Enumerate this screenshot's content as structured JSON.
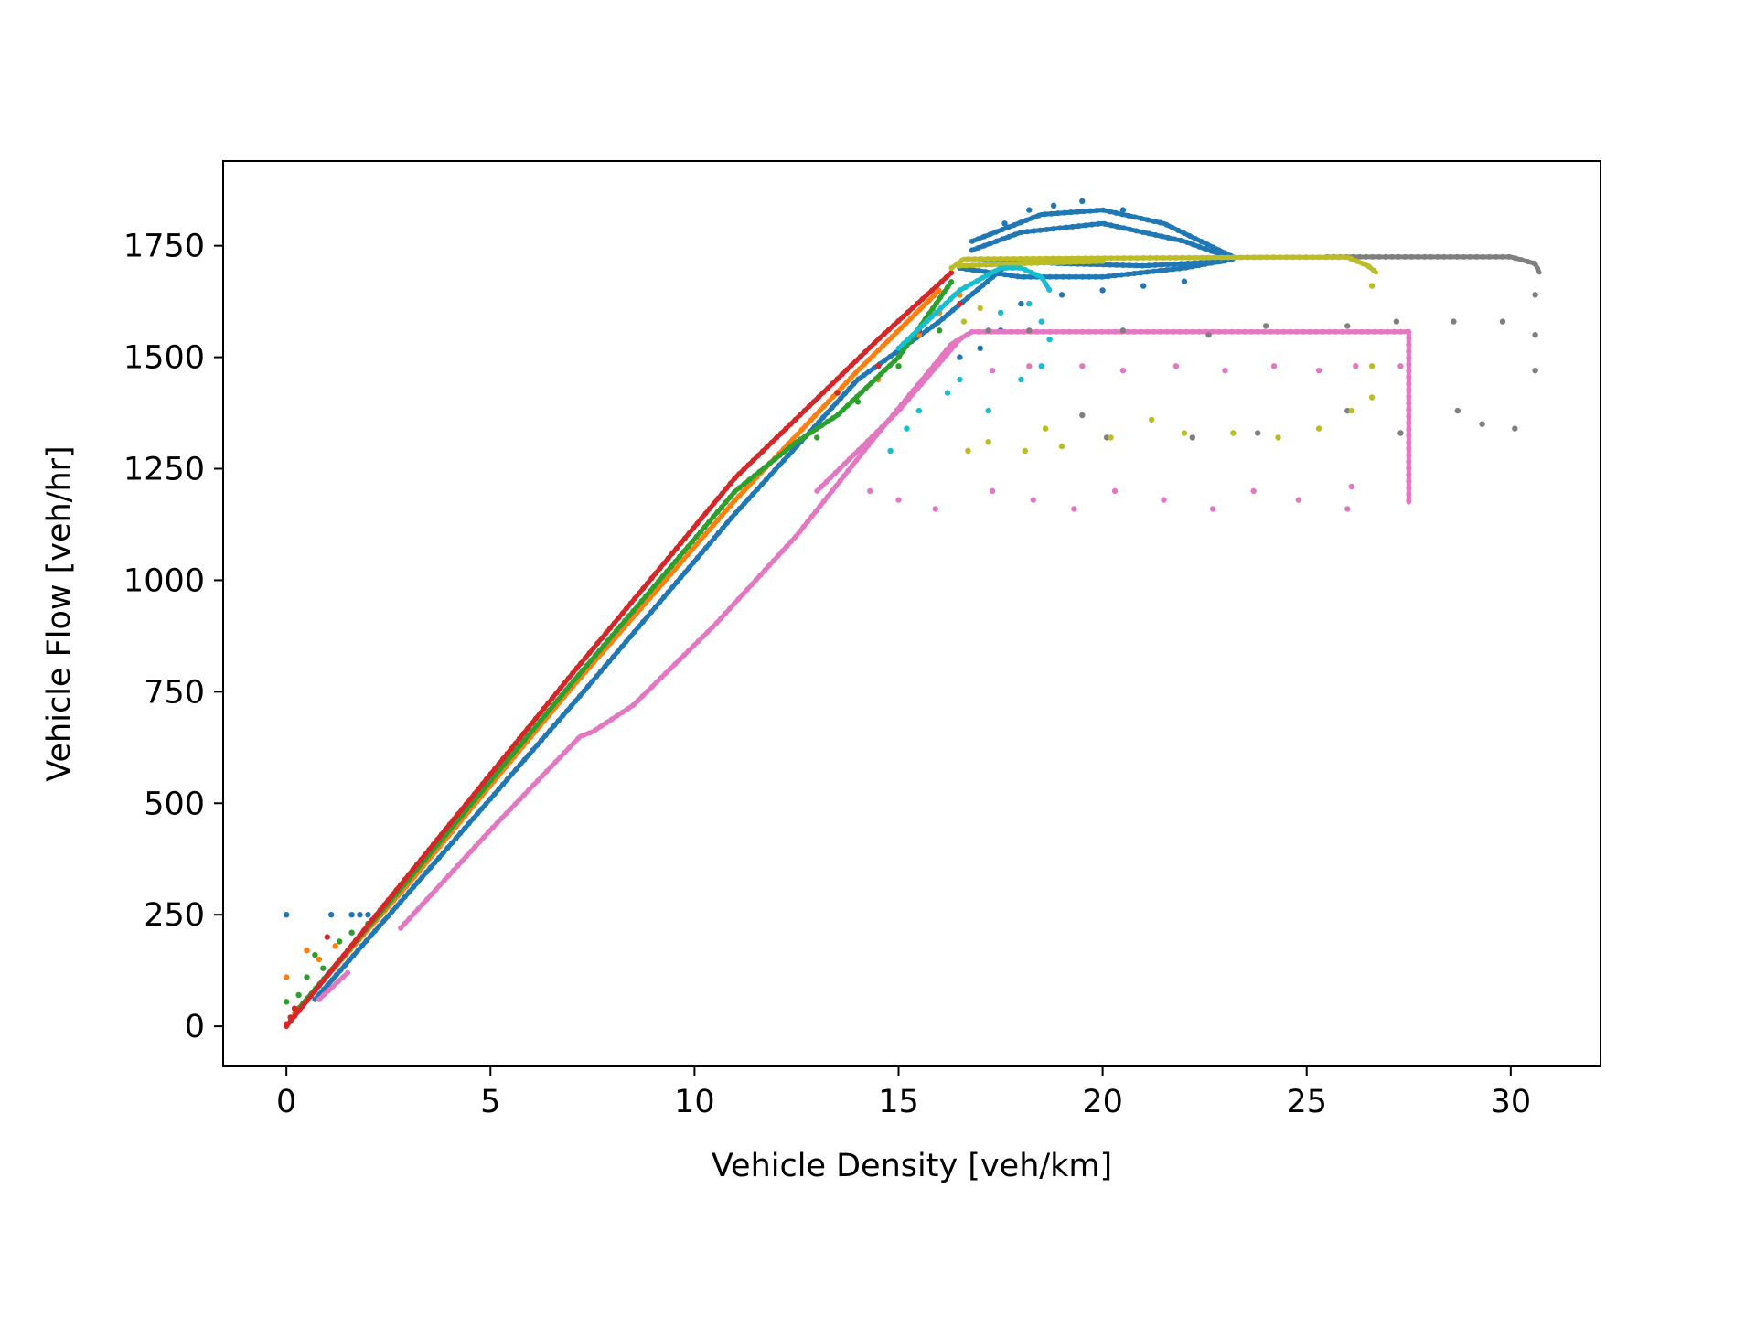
{
  "chart_data": {
    "type": "scatter",
    "title": "",
    "xlabel": "Vehicle Density [veh/km]",
    "ylabel": "Vehicle Flow [veh/hr]",
    "xlim": [
      -1.55,
      32.2
    ],
    "ylim": [
      -90,
      1940
    ],
    "xticks": [
      0,
      5,
      10,
      15,
      20,
      25,
      30
    ],
    "yticks": [
      0,
      250,
      500,
      750,
      1000,
      1250,
      1500,
      1750
    ],
    "grid": false,
    "legend": "none",
    "series": [
      {
        "color": "#1f77b4",
        "segments": [
          [
            [
              0.7,
              60
            ],
            [
              3,
              300
            ],
            [
              7,
              720
            ],
            [
              11,
              1150
            ],
            [
              14,
              1450
            ],
            [
              16,
              1580
            ],
            [
              17.7,
              1710
            ]
          ],
          [
            [
              16.8,
              1740
            ],
            [
              18,
              1780
            ],
            [
              20,
              1800
            ],
            [
              22,
              1760
            ],
            [
              23.2,
              1720
            ]
          ],
          [
            [
              16.5,
              1700
            ],
            [
              18,
              1680
            ],
            [
              20,
              1680
            ],
            [
              22,
              1700
            ],
            [
              23.2,
              1720
            ]
          ],
          [
            [
              16.8,
              1760
            ],
            [
              18.5,
              1820
            ],
            [
              20,
              1830
            ],
            [
              21.5,
              1800
            ],
            [
              23.2,
              1725
            ]
          ],
          [
            [
              17,
              1720
            ],
            [
              19,
              1710
            ],
            [
              21,
              1705
            ],
            [
              23,
              1715
            ]
          ]
        ],
        "points": [
          [
            0,
            250
          ],
          [
            1.1,
            250
          ],
          [
            1.6,
            250
          ],
          [
            1.8,
            250
          ],
          [
            2,
            250
          ],
          [
            16.5,
            1500
          ],
          [
            17,
            1520
          ],
          [
            17.5,
            1560
          ],
          [
            18,
            1620
          ],
          [
            19,
            1640
          ],
          [
            20,
            1650
          ],
          [
            21,
            1660
          ],
          [
            22,
            1670
          ],
          [
            19.5,
            1850
          ],
          [
            18.8,
            1840
          ],
          [
            18.2,
            1830
          ],
          [
            20.5,
            1830
          ],
          [
            17.6,
            1800
          ]
        ]
      },
      {
        "color": "#ff7f0e",
        "segments": [
          [
            [
              0.2,
              30
            ],
            [
              3,
              320
            ],
            [
              7,
              760
            ],
            [
              11,
              1180
            ],
            [
              14,
              1470
            ],
            [
              16,
              1650
            ]
          ]
        ],
        "points": [
          [
            0,
            110
          ],
          [
            0.5,
            170
          ],
          [
            0.8,
            150
          ],
          [
            1.2,
            180
          ],
          [
            14.5,
            1450
          ],
          [
            15,
            1500
          ],
          [
            15.5,
            1550
          ],
          [
            16,
            1600
          ],
          [
            16.5,
            1640
          ]
        ]
      },
      {
        "color": "#2ca02c",
        "segments": [
          [
            [
              0.3,
              40
            ],
            [
              3,
              330
            ],
            [
              7,
              770
            ],
            [
              11,
              1200
            ],
            [
              12.5,
              1310
            ],
            [
              13.5,
              1370
            ],
            [
              15,
              1500
            ],
            [
              16.3,
              1670
            ]
          ]
        ],
        "points": [
          [
            0,
            55
          ],
          [
            0.3,
            70
          ],
          [
            0.5,
            110
          ],
          [
            0.7,
            160
          ],
          [
            0.9,
            130
          ],
          [
            1.3,
            190
          ],
          [
            1.6,
            210
          ],
          [
            2,
            230
          ],
          [
            13,
            1320
          ],
          [
            14,
            1400
          ],
          [
            15,
            1480
          ],
          [
            16,
            1560
          ]
        ]
      },
      {
        "color": "#d62728",
        "segments": [
          [
            [
              0,
              0
            ],
            [
              3,
              340
            ],
            [
              7,
              790
            ],
            [
              11,
              1230
            ],
            [
              14.5,
              1540
            ],
            [
              16.3,
              1690
            ]
          ]
        ],
        "points": [
          [
            0,
            5
          ],
          [
            0.1,
            20
          ],
          [
            0.2,
            40
          ],
          [
            1,
            200
          ],
          [
            13.5,
            1420
          ],
          [
            14.5,
            1480
          ],
          [
            15.5,
            1560
          ],
          [
            16.5,
            1620
          ]
        ]
      },
      {
        "color": "#e377c2",
        "segments": [
          [
            [
              0.8,
              60
            ],
            [
              1.5,
              120
            ]
          ],
          [
            [
              2.8,
              220
            ],
            [
              5,
              440
            ],
            [
              7.2,
              650
            ],
            [
              7.5,
              660
            ],
            [
              8.5,
              720
            ],
            [
              10.5,
              900
            ],
            [
              12.5,
              1100
            ],
            [
              14.5,
              1330
            ],
            [
              16.3,
              1530
            ],
            [
              16.8,
              1557
            ]
          ],
          [
            [
              16.8,
              1557
            ],
            [
              27.5,
              1557
            ]
          ],
          [
            [
              27.5,
              1557
            ],
            [
              27.5,
              1175
            ]
          ],
          [
            [
              13,
              1200
            ],
            [
              15,
              1380
            ],
            [
              16.5,
              1540
            ]
          ]
        ],
        "points": [
          [
            14.3,
            1200
          ],
          [
            15,
            1180
          ],
          [
            15.9,
            1160
          ],
          [
            17.3,
            1200
          ],
          [
            18.3,
            1180
          ],
          [
            19.3,
            1160
          ],
          [
            20.3,
            1200
          ],
          [
            21.5,
            1180
          ],
          [
            22.7,
            1160
          ],
          [
            23.7,
            1200
          ],
          [
            24.8,
            1180
          ],
          [
            26,
            1160
          ],
          [
            26.1,
            1210
          ],
          [
            17.3,
            1470
          ],
          [
            18.2,
            1480
          ],
          [
            19.5,
            1480
          ],
          [
            20.5,
            1470
          ],
          [
            21.8,
            1480
          ],
          [
            23,
            1470
          ],
          [
            24.2,
            1480
          ],
          [
            25.3,
            1470
          ],
          [
            26.2,
            1480
          ],
          [
            27.3,
            1480
          ]
        ]
      },
      {
        "color": "#7f7f7f",
        "segments": [
          [
            [
              25.5,
              1725
            ],
            [
              28,
              1725
            ],
            [
              30,
              1725
            ],
            [
              30.6,
              1710
            ],
            [
              30.7,
              1690
            ]
          ]
        ],
        "points": [
          [
            17.2,
            1560
          ],
          [
            18.2,
            1560
          ],
          [
            20.5,
            1560
          ],
          [
            22.6,
            1550
          ],
          [
            24,
            1570
          ],
          [
            26,
            1570
          ],
          [
            27.2,
            1580
          ],
          [
            28.6,
            1580
          ],
          [
            29.8,
            1580
          ],
          [
            19.5,
            1370
          ],
          [
            20.1,
            1320
          ],
          [
            22.2,
            1320
          ],
          [
            23.8,
            1330
          ],
          [
            26,
            1380
          ],
          [
            27.3,
            1330
          ],
          [
            28.7,
            1380
          ],
          [
            29.3,
            1350
          ],
          [
            30.1,
            1340
          ],
          [
            30.6,
            1470
          ],
          [
            30.6,
            1550
          ],
          [
            30.6,
            1640
          ]
        ]
      },
      {
        "color": "#bcbd22",
        "segments": [
          [
            [
              16.3,
              1700
            ],
            [
              16.6,
              1720
            ],
            [
              20,
              1722
            ],
            [
              24,
              1724
            ],
            [
              26,
              1724
            ],
            [
              26.5,
              1705
            ],
            [
              26.7,
              1690
            ]
          ],
          [
            [
              16.5,
              1705
            ],
            [
              18,
              1710
            ],
            [
              20,
              1715
            ]
          ]
        ],
        "points": [
          [
            16.7,
            1290
          ],
          [
            17.2,
            1310
          ],
          [
            18.1,
            1290
          ],
          [
            18.6,
            1340
          ],
          [
            19,
            1300
          ],
          [
            20.2,
            1320
          ],
          [
            21.2,
            1360
          ],
          [
            22,
            1330
          ],
          [
            23.2,
            1330
          ],
          [
            24.3,
            1320
          ],
          [
            25.3,
            1340
          ],
          [
            26.1,
            1380
          ],
          [
            26.6,
            1410
          ],
          [
            26.6,
            1480
          ],
          [
            26.6,
            1660
          ],
          [
            16.6,
            1580
          ],
          [
            17,
            1610
          ]
        ]
      },
      {
        "color": "#17becf",
        "segments": [
          [
            [
              15,
              1520
            ],
            [
              16.5,
              1650
            ],
            [
              17.5,
              1700
            ],
            [
              18,
              1700
            ],
            [
              18.5,
              1680
            ],
            [
              18.7,
              1650
            ]
          ]
        ],
        "points": [
          [
            14.8,
            1290
          ],
          [
            15.2,
            1340
          ],
          [
            15.5,
            1380
          ],
          [
            16.2,
            1420
          ],
          [
            16.5,
            1450
          ],
          [
            17.2,
            1380
          ],
          [
            18,
            1450
          ],
          [
            18.5,
            1480
          ],
          [
            18.7,
            1540
          ],
          [
            17.5,
            1600
          ],
          [
            18.2,
            1620
          ],
          [
            18.5,
            1580
          ]
        ]
      }
    ]
  }
}
